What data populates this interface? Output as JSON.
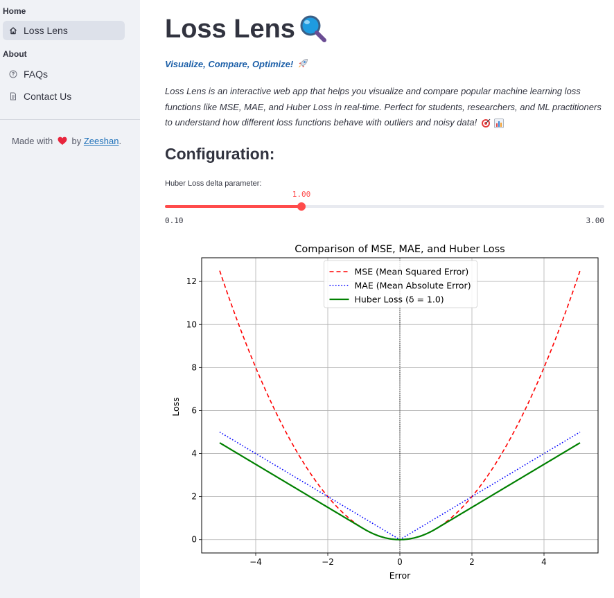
{
  "sidebar": {
    "section_home": "Home",
    "section_about": "About",
    "items": [
      {
        "label": "Loss Lens",
        "icon": "home-icon",
        "active": true
      },
      {
        "label": "FAQs",
        "icon": "help-circle-icon",
        "active": false
      },
      {
        "label": "Contact Us",
        "icon": "document-icon",
        "active": false
      }
    ],
    "footer": {
      "made_with": "Made with",
      "heart": "❤️",
      "by": "by",
      "author": "Zeeshan",
      "period": "."
    }
  },
  "main": {
    "title": "Loss Lens",
    "title_emoji": "magnifier-icon",
    "tagline": "Visualize, Compare, Optimize!",
    "tagline_emoji": "rocket-icon",
    "description_lines": [
      "Loss Lens is an interactive web app that helps you visualize and compare popular machine learning loss",
      "functions like MSE, MAE, and Huber Loss in real-time. Perfect for students, researchers, and ML practitioners",
      "to understand how different loss functions behave with outliers and noisy data!"
    ],
    "description_emojis": [
      "target-icon",
      "bar-chart-icon"
    ],
    "config_heading": "Configuration:",
    "slider": {
      "label": "Huber Loss delta parameter:",
      "value": 1.0,
      "value_text": "1.00",
      "min": 0.1,
      "max": 3.0,
      "min_text": "0.10",
      "max_text": "3.00",
      "accent": "#ff4b4b"
    }
  },
  "chart_data": {
    "type": "line",
    "title": "Comparison of MSE, MAE, and Huber Loss",
    "xlabel": "Error",
    "ylabel": "Loss",
    "xlim": [
      -5.5,
      5.5
    ],
    "ylim": [
      -0.62,
      13.1
    ],
    "xticks": [
      -4,
      -2,
      0,
      2,
      4
    ],
    "xtick_labels": [
      "−4",
      "−2",
      "0",
      "2",
      "4"
    ],
    "yticks": [
      0,
      2,
      4,
      6,
      8,
      10,
      12
    ],
    "ytick_labels": [
      "0",
      "2",
      "4",
      "6",
      "8",
      "10",
      "12"
    ],
    "grid": true,
    "legend_position": "top-center",
    "x_range": [
      -5,
      5
    ],
    "vertical_reference_line_x": 0,
    "series": [
      {
        "name": "MSE (Mean Squared Error)",
        "function": "0.5*x^2",
        "color": "#ff0000",
        "style": "dashed"
      },
      {
        "name": "MAE (Mean Absolute Error)",
        "function": "|x|",
        "color": "#0000ff",
        "style": "dotted"
      },
      {
        "name": "Huber Loss (δ = 1.0)",
        "function": "huber(x, 1.0)",
        "color": "#008000",
        "style": "solid"
      }
    ]
  }
}
